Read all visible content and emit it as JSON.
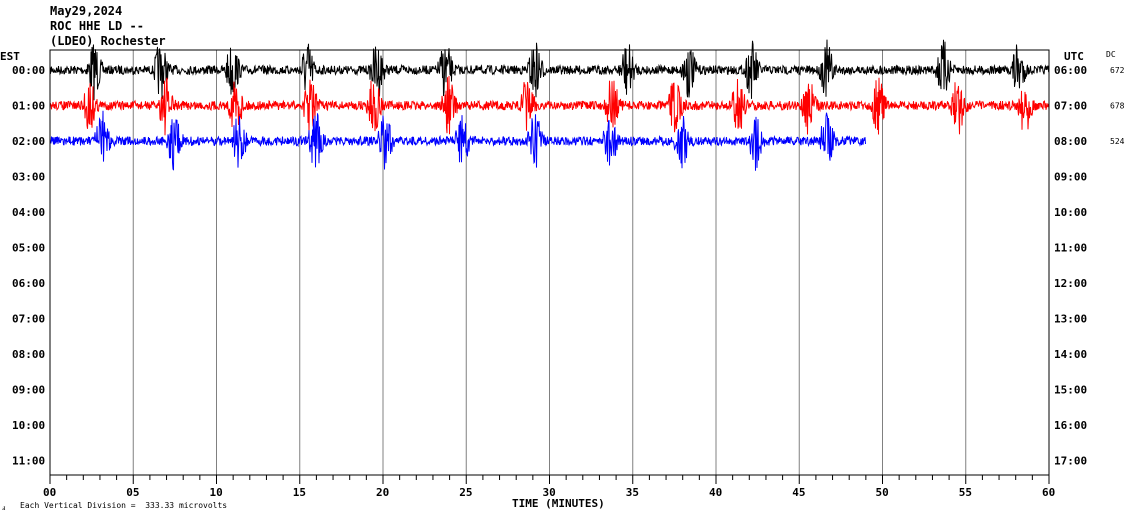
{
  "header": {
    "date": "May29,2024",
    "station": "ROC HHE LD --",
    "network": "(LDEO) Rochester"
  },
  "left_tz": "EST",
  "right_tz": "UTC",
  "dc_label": "DC",
  "footer": {
    "mark": "ⅎ",
    "scale_text": "Each Vertical Division =  333.33 microvolts"
  },
  "colors": {
    "row1": "#000000",
    "row2": "#ff0000",
    "row3": "#0000ff",
    "grid": "#808080"
  },
  "chart_data": {
    "type": "line",
    "title": "May29,2024",
    "xlabel": "TIME (MINUTES)",
    "ylabel": "",
    "xlim": [
      0,
      60
    ],
    "x_ticks": [
      "00",
      "05",
      "10",
      "15",
      "20",
      "25",
      "30",
      "35",
      "40",
      "45",
      "50",
      "55",
      "60"
    ],
    "left_ticks": [
      "00:00",
      "01:00",
      "02:00",
      "03:00",
      "04:00",
      "05:00",
      "06:00",
      "07:00",
      "08:00",
      "09:00",
      "10:00",
      "11:00"
    ],
    "right_ticks": [
      "06:00",
      "07:00",
      "08:00",
      "09:00",
      "10:00",
      "11:00",
      "12:00",
      "13:00",
      "14:00",
      "15:00",
      "16:00",
      "17:00"
    ],
    "scale": "333.33 microvolts",
    "series": [
      {
        "row": 0,
        "color": "#000000",
        "dc": "672",
        "end_minute": 60,
        "events_minute": [
          2.5,
          6.5,
          10.8,
          15.3,
          19.5,
          23.6,
          29.0,
          34.5,
          38.2,
          42.0,
          46.5,
          53.5,
          58.0
        ]
      },
      {
        "row": 1,
        "color": "#ff0000",
        "dc": "678",
        "end_minute": 60,
        "events_minute": [
          2.2,
          6.8,
          11.0,
          15.5,
          19.3,
          23.8,
          28.5,
          33.6,
          37.4,
          41.2,
          45.4,
          49.6,
          54.4,
          58.4
        ]
      },
      {
        "row": 2,
        "color": "#0000ff",
        "dc": "524",
        "end_minute": 49,
        "events_minute": [
          3.0,
          7.3,
          11.2,
          15.8,
          20.0,
          24.6,
          29.0,
          33.5,
          37.8,
          42.2,
          46.5
        ]
      }
    ]
  }
}
